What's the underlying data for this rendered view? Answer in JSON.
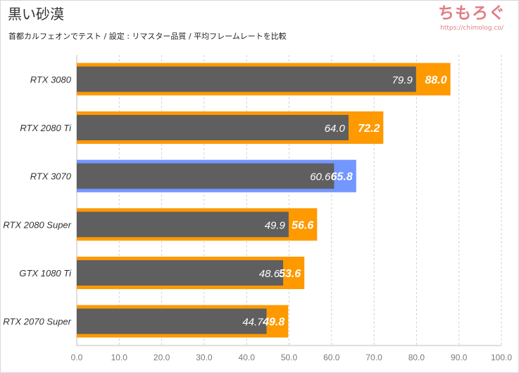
{
  "header": {
    "title": "黒い砂漠",
    "subtitle": "首都カルフェオンでテスト / 設定 : リマスター品質 / 平均フレームレートを比較"
  },
  "brand": {
    "name": "ちもろぐ",
    "url": "https://chimolog.co/"
  },
  "colors": {
    "background": "#ffffff",
    "gray_bar": "#5f5f5f",
    "orange_bar": "#ff9900",
    "highlight_bar": "#7396ff",
    "grid": "#cfcfcf",
    "axis_text": "#7a7a7a",
    "label_text": "#333333"
  },
  "chart_data": {
    "type": "bar",
    "orientation": "horizontal",
    "categories": [
      "RTX 3080",
      "RTX 2080 Ti",
      "RTX 3070",
      "RTX 2080 Super",
      "GTX 1080 Ti",
      "RTX 2070 Super"
    ],
    "series": [
      {
        "values": [
          88.0,
          72.2,
          65.8,
          56.6,
          53.6,
          49.8
        ],
        "labels": [
          "88.0",
          "72.2",
          "65.8",
          "56.6",
          "53.6",
          "49.8"
        ],
        "color": "#ff9900"
      },
      {
        "values": [
          79.9,
          64.0,
          60.6,
          49.9,
          48.6,
          44.7
        ],
        "labels": [
          "79.9",
          "64.0",
          "60.6",
          "49.9",
          "48.6",
          "44.7"
        ],
        "color": "#5f5f5f"
      }
    ],
    "highlight_category": "RTX 3070",
    "highlight_color": "#7396ff",
    "xlim": [
      0,
      100
    ],
    "xticks": [
      "0.0",
      "10.0",
      "20.0",
      "30.0",
      "40.0",
      "50.0",
      "60.0",
      "70.0",
      "80.0",
      "90.0",
      "100.0"
    ],
    "grid": true,
    "grid_style": "dashed vertical",
    "legend": "none"
  }
}
